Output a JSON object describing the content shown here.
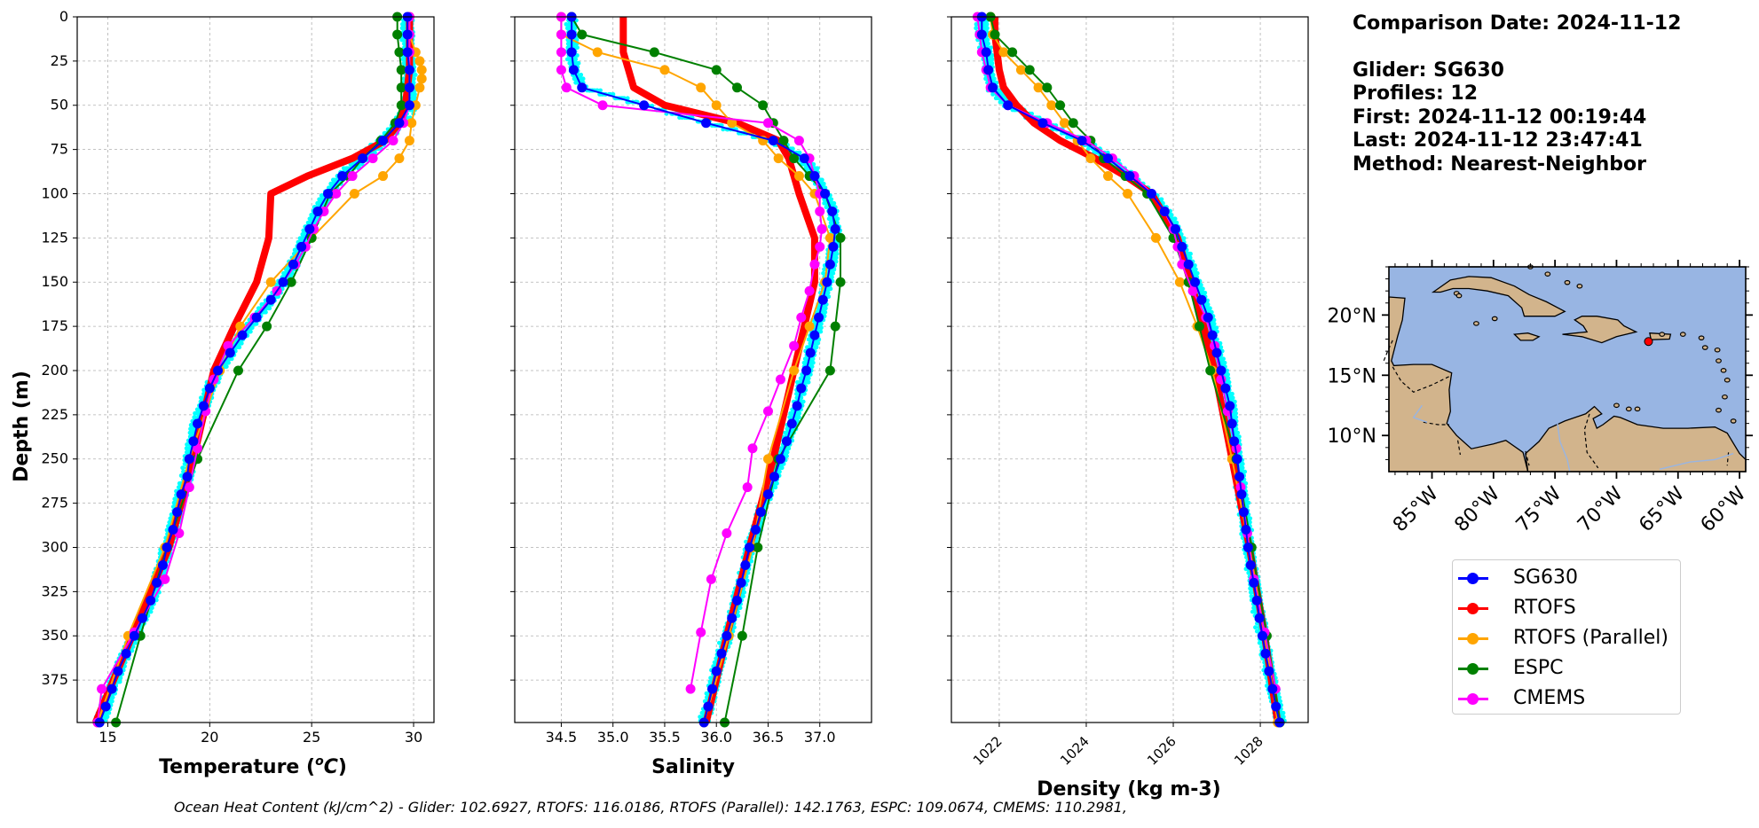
{
  "chart_data": [
    {
      "type": "line",
      "xlabel": "Temperature ($^{o}C$)",
      "xlabel_text": "Temperature (",
      "xlabel_unit": "C",
      "xlabel_sup": "o",
      "xlabel_tail": ")",
      "ylabel": "Depth (m)",
      "xlim": [
        13.5,
        31
      ],
      "ylim": [
        399,
        0
      ],
      "xticks": [
        15,
        20,
        25,
        30
      ],
      "yticks": [
        0,
        25,
        50,
        75,
        100,
        125,
        150,
        175,
        200,
        225,
        250,
        275,
        300,
        325,
        350,
        375
      ],
      "grid": true,
      "glider_profiles_color": "#00ffff",
      "series": [
        {
          "name": "SG630",
          "color": "#0000ff",
          "depth": [
            0,
            10,
            20,
            30,
            40,
            50,
            60,
            70,
            80,
            90,
            100,
            110,
            120,
            130,
            140,
            150,
            160,
            170,
            180,
            190,
            200,
            210,
            220,
            230,
            240,
            250,
            260,
            270,
            280,
            290,
            300,
            310,
            320,
            330,
            340,
            350,
            360,
            370,
            380,
            390,
            399
          ],
          "values": [
            29.7,
            29.7,
            29.7,
            29.8,
            29.8,
            29.8,
            29.3,
            28.5,
            27.5,
            26.5,
            25.8,
            25.3,
            24.9,
            24.5,
            24.1,
            23.6,
            23.0,
            22.3,
            21.6,
            21.0,
            20.4,
            20.0,
            19.7,
            19.4,
            19.2,
            19.0,
            18.9,
            18.6,
            18.4,
            18.2,
            17.9,
            17.7,
            17.4,
            17.1,
            16.7,
            16.3,
            15.9,
            15.5,
            15.2,
            14.9,
            14.6
          ]
        },
        {
          "name": "RTOFS",
          "color": "#ff0000",
          "depth": [
            0,
            10,
            20,
            30,
            40,
            50,
            60,
            70,
            80,
            90,
            100,
            125,
            150,
            175,
            200,
            250,
            300,
            350,
            399
          ],
          "values": [
            29.8,
            29.8,
            29.8,
            29.8,
            29.7,
            29.6,
            29.3,
            28.6,
            27.0,
            24.8,
            23.0,
            22.9,
            22.3,
            21.2,
            20.2,
            19.2,
            18.0,
            16.2,
            14.4
          ]
        },
        {
          "name": "RTOFS (Parallel)",
          "color": "#ffa500",
          "depth": [
            0,
            10,
            20,
            25,
            30,
            35,
            40,
            50,
            60,
            70,
            80,
            90,
            100,
            125,
            150,
            175,
            200,
            250,
            300,
            350,
            399
          ],
          "values": [
            29.8,
            29.8,
            30.1,
            30.3,
            30.4,
            30.4,
            30.3,
            30.1,
            29.9,
            29.8,
            29.3,
            28.5,
            27.1,
            25.0,
            23.0,
            21.5,
            20.5,
            19.0,
            17.8,
            16.0,
            14.5
          ]
        },
        {
          "name": "ESPC",
          "color": "#008000",
          "depth": [
            0,
            10,
            20,
            30,
            40,
            50,
            60,
            70,
            80,
            90,
            100,
            125,
            150,
            175,
            200,
            250,
            300,
            350,
            399
          ],
          "values": [
            29.2,
            29.2,
            29.3,
            29.4,
            29.4,
            29.4,
            29.1,
            28.4,
            27.5,
            26.8,
            25.9,
            25.0,
            24.0,
            22.8,
            21.4,
            19.4,
            17.9,
            16.6,
            15.4
          ]
        },
        {
          "name": "CMEMS",
          "color": "#ff00ff",
          "depth": [
            0,
            10,
            20,
            30,
            40,
            50,
            60,
            70,
            80,
            90,
            100,
            110,
            120,
            130,
            140,
            155,
            170,
            186,
            205,
            223,
            244,
            266,
            292,
            318,
            348,
            380,
            399
          ],
          "values": [
            29.8,
            29.8,
            29.8,
            29.8,
            29.8,
            29.8,
            29.5,
            29.0,
            28.0,
            27.0,
            26.2,
            25.6,
            25.1,
            24.7,
            24.2,
            23.3,
            22.2,
            20.9,
            20.2,
            19.8,
            19.4,
            19.0,
            18.5,
            17.8,
            16.3,
            14.7,
            14.5
          ]
        }
      ]
    },
    {
      "type": "line",
      "xlabel": "Salinity",
      "xlim": [
        34.05,
        37.5
      ],
      "ylim": [
        399,
        0
      ],
      "xticks": [
        34.5,
        35.0,
        35.5,
        36.0,
        36.5,
        37.0
      ],
      "xticklabels": [
        "34.5",
        "35.0",
        "35.5",
        "36.0",
        "36.5",
        "37.0"
      ],
      "grid": true,
      "series": [
        {
          "name": "SG630",
          "color": "#0000ff",
          "depth": [
            0,
            10,
            20,
            30,
            40,
            50,
            60,
            70,
            80,
            90,
            100,
            110,
            120,
            130,
            140,
            150,
            160,
            170,
            180,
            190,
            200,
            210,
            220,
            230,
            240,
            250,
            260,
            270,
            280,
            290,
            300,
            310,
            320,
            330,
            340,
            350,
            360,
            370,
            380,
            390,
            399
          ],
          "values": [
            34.6,
            34.6,
            34.6,
            34.62,
            34.7,
            35.3,
            35.9,
            36.55,
            36.85,
            36.95,
            37.05,
            37.12,
            37.15,
            37.13,
            37.1,
            37.07,
            37.03,
            36.99,
            36.95,
            36.91,
            36.87,
            36.82,
            36.78,
            36.73,
            36.68,
            36.62,
            36.56,
            36.5,
            36.43,
            36.38,
            36.32,
            36.28,
            36.24,
            36.2,
            36.15,
            36.1,
            36.05,
            36.0,
            35.96,
            35.92,
            35.88
          ]
        },
        {
          "name": "RTOFS",
          "color": "#ff0000",
          "depth": [
            0,
            10,
            20,
            30,
            40,
            50,
            60,
            70,
            80,
            90,
            100,
            125,
            150,
            175,
            200,
            250,
            300,
            350,
            399
          ],
          "values": [
            35.1,
            35.1,
            35.1,
            35.15,
            35.2,
            35.5,
            36.2,
            36.6,
            36.7,
            36.75,
            36.8,
            36.95,
            36.95,
            36.85,
            36.75,
            36.55,
            36.32,
            36.1,
            35.9
          ]
        },
        {
          "name": "RTOFS (Parallel)",
          "color": "#ffa500",
          "depth": [
            0,
            10,
            20,
            30,
            40,
            50,
            60,
            70,
            80,
            90,
            100,
            125,
            150,
            175,
            200,
            250,
            300,
            350,
            399
          ],
          "values": [
            34.5,
            34.5,
            34.85,
            35.5,
            35.85,
            36.0,
            36.15,
            36.45,
            36.6,
            36.8,
            36.95,
            37.1,
            37.05,
            36.9,
            36.75,
            36.5,
            36.35,
            36.12,
            35.88
          ]
        },
        {
          "name": "ESPC",
          "color": "#008000",
          "depth": [
            0,
            10,
            20,
            30,
            40,
            50,
            60,
            70,
            80,
            90,
            100,
            125,
            150,
            175,
            200,
            250,
            300,
            350,
            399
          ],
          "values": [
            34.6,
            34.7,
            35.4,
            36.0,
            36.2,
            36.45,
            36.55,
            36.65,
            36.75,
            36.9,
            37.05,
            37.2,
            37.2,
            37.15,
            37.1,
            36.6,
            36.4,
            36.25,
            36.08
          ]
        },
        {
          "name": "CMEMS",
          "color": "#ff00ff",
          "depth": [
            0,
            10,
            20,
            30,
            40,
            50,
            60,
            70,
            80,
            90,
            100,
            110,
            120,
            130,
            140,
            155,
            170,
            186,
            205,
            223,
            244,
            266,
            292,
            318,
            348,
            380
          ],
          "values": [
            34.5,
            34.5,
            34.5,
            34.5,
            34.55,
            34.9,
            36.5,
            36.8,
            36.9,
            36.95,
            37.0,
            37.0,
            37.02,
            37.0,
            36.95,
            36.9,
            36.82,
            36.75,
            36.62,
            36.5,
            36.35,
            36.3,
            36.1,
            35.95,
            35.85,
            35.75
          ]
        }
      ]
    },
    {
      "type": "line",
      "xlabel": "Density (kg m-3)",
      "xlim": [
        1020.9,
        1029.1
      ],
      "ylim": [
        399,
        0
      ],
      "xticks": [
        1022,
        1024,
        1026,
        1028
      ],
      "xticklabels": [
        "1022",
        "1024",
        "1026",
        "1028"
      ],
      "grid": true,
      "series": [
        {
          "name": "SG630",
          "color": "#0000ff",
          "depth": [
            0,
            10,
            20,
            30,
            40,
            50,
            60,
            70,
            80,
            90,
            100,
            110,
            120,
            130,
            140,
            150,
            160,
            170,
            180,
            190,
            200,
            210,
            220,
            230,
            240,
            250,
            260,
            270,
            280,
            290,
            300,
            310,
            320,
            330,
            340,
            350,
            360,
            370,
            380,
            390,
            399
          ],
          "values": [
            1021.6,
            1021.6,
            1021.7,
            1021.75,
            1021.85,
            1022.2,
            1023.0,
            1023.9,
            1024.5,
            1025.0,
            1025.5,
            1025.8,
            1026.05,
            1026.2,
            1026.35,
            1026.5,
            1026.65,
            1026.8,
            1026.9,
            1027.0,
            1027.1,
            1027.2,
            1027.3,
            1027.35,
            1027.4,
            1027.47,
            1027.52,
            1027.57,
            1027.62,
            1027.67,
            1027.72,
            1027.78,
            1027.85,
            1027.92,
            1027.98,
            1028.05,
            1028.12,
            1028.2,
            1028.28,
            1028.36,
            1028.44
          ]
        },
        {
          "name": "RTOFS",
          "color": "#ff0000",
          "depth": [
            0,
            10,
            20,
            30,
            40,
            50,
            60,
            70,
            80,
            90,
            100,
            125,
            150,
            175,
            200,
            250,
            300,
            350,
            399
          ],
          "values": [
            1021.9,
            1021.9,
            1021.95,
            1022.0,
            1022.1,
            1022.4,
            1022.8,
            1023.4,
            1024.2,
            1024.9,
            1025.5,
            1026.1,
            1026.4,
            1026.7,
            1026.95,
            1027.35,
            1027.75,
            1028.1,
            1028.4
          ]
        },
        {
          "name": "RTOFS (Parallel)",
          "color": "#ffa500",
          "depth": [
            0,
            10,
            20,
            30,
            40,
            50,
            60,
            70,
            80,
            90,
            100,
            125,
            150,
            175,
            200,
            250,
            300,
            350,
            399
          ],
          "values": [
            1021.8,
            1021.85,
            1022.1,
            1022.5,
            1022.9,
            1023.2,
            1023.5,
            1023.8,
            1024.1,
            1024.5,
            1024.95,
            1025.6,
            1026.15,
            1026.55,
            1026.9,
            1027.35,
            1027.75,
            1028.1,
            1028.4
          ]
        },
        {
          "name": "ESPC",
          "color": "#008000",
          "depth": [
            0,
            10,
            20,
            30,
            40,
            50,
            60,
            70,
            80,
            90,
            100,
            125,
            150,
            175,
            200,
            250,
            300,
            350,
            399
          ],
          "values": [
            1021.8,
            1021.9,
            1022.3,
            1022.7,
            1023.1,
            1023.4,
            1023.7,
            1024.1,
            1024.4,
            1024.9,
            1025.4,
            1026.0,
            1026.35,
            1026.6,
            1026.85,
            1027.45,
            1027.8,
            1028.15,
            1028.45
          ]
        },
        {
          "name": "CMEMS",
          "color": "#ff00ff",
          "depth": [
            0,
            10,
            20,
            30,
            40,
            50,
            60,
            70,
            80,
            90,
            100,
            110,
            120,
            130,
            140,
            155,
            170,
            186,
            205,
            223,
            244,
            266,
            292,
            318,
            348,
            380
          ],
          "values": [
            1021.5,
            1021.55,
            1021.6,
            1021.7,
            1021.8,
            1022.2,
            1023.1,
            1024.0,
            1024.6,
            1025.1,
            1025.5,
            1025.8,
            1026.0,
            1026.1,
            1026.2,
            1026.45,
            1026.75,
            1026.95,
            1027.1,
            1027.25,
            1027.45,
            1027.55,
            1027.7,
            1027.85,
            1028.1,
            1028.35
          ]
        }
      ]
    },
    {
      "type": "map",
      "lon_range": [
        -88.5,
        -59.5
      ],
      "lat_range": [
        7.0,
        24.0
      ],
      "yticklabels": [
        "20°N",
        "15°N",
        "10°N"
      ],
      "ytick_values": [
        20,
        15,
        10
      ],
      "xticklabels": [
        "85°W",
        "80°W",
        "75°W",
        "70°W",
        "65°W",
        "60°W"
      ],
      "xtick_values": [
        -85,
        -80,
        -75,
        -70,
        -65,
        -60
      ],
      "ocean_color": "#98b5e3",
      "land_color": "#d2b48c",
      "glider_marker": {
        "lon": -67.4,
        "lat": 17.8,
        "color": "#ff0000"
      }
    }
  ],
  "info": {
    "comparison_date": "Comparison Date: 2024-11-12",
    "glider": "Glider: SG630",
    "profiles": "Profiles: 12",
    "first": "First: 2024-11-12 00:19:44",
    "last": "Last: 2024-11-12 23:47:41",
    "method": "Method: Nearest-Neighbor"
  },
  "legend": [
    {
      "label": "SG630",
      "color": "#0000ff"
    },
    {
      "label": "RTOFS",
      "color": "#ff0000"
    },
    {
      "label": "RTOFS (Parallel)",
      "color": "#ffa500"
    },
    {
      "label": "ESPC",
      "color": "#008000"
    },
    {
      "label": "CMEMS",
      "color": "#ff00ff"
    }
  ],
  "footer": "Ocean Heat Content (kJ/cm^2) - Glider: 102.6927,  RTOFS: 116.0186,  RTOFS (Parallel): 142.1763,  ESPC: 109.0674,  CMEMS: 110.2981,"
}
